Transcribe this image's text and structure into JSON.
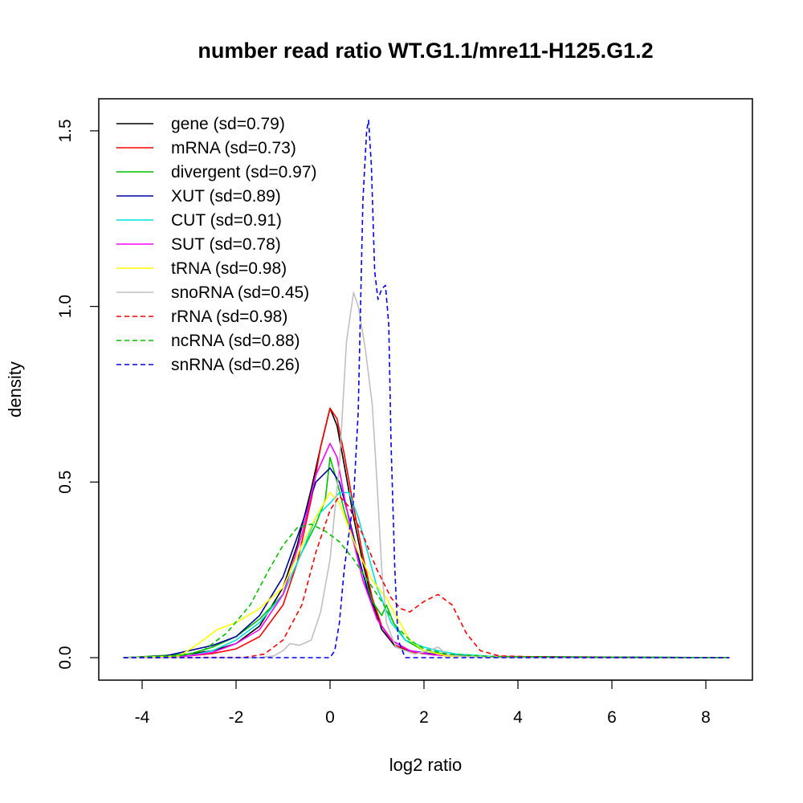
{
  "chart_data": {
    "type": "line",
    "title": "number read ratio WT.G1.1/mre11-H125.G1.2",
    "xlabel": "log2 ratio",
    "ylabel": "density",
    "xlim": [
      -4.4,
      8.5
    ],
    "ylim": [
      0,
      1.55
    ],
    "xticks": [
      -4,
      -2,
      0,
      2,
      4,
      6,
      8
    ],
    "yticks": [
      0.0,
      0.5,
      1.0,
      1.5
    ],
    "xtick_labels": [
      "-4",
      "-2",
      "0",
      "2",
      "4",
      "6",
      "8"
    ],
    "ytick_labels": [
      "0.0",
      "0.5",
      "1.0",
      "1.5"
    ],
    "legend_position": "top-left",
    "series": [
      {
        "name": "gene",
        "label": "gene (sd=0.79)",
        "color": "#000000",
        "dash": "solid",
        "points": [
          [
            -4.4,
            0
          ],
          [
            -3.5,
            0.002
          ],
          [
            -3,
            0.01
          ],
          [
            -2.5,
            0.02
          ],
          [
            -2,
            0.04
          ],
          [
            -1.5,
            0.09
          ],
          [
            -1,
            0.2
          ],
          [
            -0.7,
            0.32
          ],
          [
            -0.4,
            0.48
          ],
          [
            -0.2,
            0.6
          ],
          [
            0,
            0.71
          ],
          [
            0.15,
            0.66
          ],
          [
            0.3,
            0.55
          ],
          [
            0.5,
            0.4
          ],
          [
            0.7,
            0.27
          ],
          [
            0.9,
            0.16
          ],
          [
            1.1,
            0.08
          ],
          [
            1.4,
            0.03
          ],
          [
            1.8,
            0.015
          ],
          [
            2.2,
            0.008
          ],
          [
            3,
            0.003
          ],
          [
            4,
            0.001
          ],
          [
            6,
            0
          ],
          [
            8.5,
            0
          ]
        ]
      },
      {
        "name": "mRNA",
        "label": "mRNA (sd=0.73)",
        "color": "#ff0000",
        "dash": "solid",
        "points": [
          [
            -4.4,
            0
          ],
          [
            -3,
            0.005
          ],
          [
            -2.5,
            0.012
          ],
          [
            -2,
            0.025
          ],
          [
            -1.5,
            0.06
          ],
          [
            -1,
            0.15
          ],
          [
            -0.7,
            0.27
          ],
          [
            -0.4,
            0.45
          ],
          [
            -0.2,
            0.6
          ],
          [
            0,
            0.71
          ],
          [
            0.15,
            0.68
          ],
          [
            0.3,
            0.58
          ],
          [
            0.5,
            0.43
          ],
          [
            0.7,
            0.29
          ],
          [
            0.9,
            0.17
          ],
          [
            1.1,
            0.09
          ],
          [
            1.4,
            0.035
          ],
          [
            1.8,
            0.015
          ],
          [
            2.5,
            0.005
          ],
          [
            4,
            0.001
          ],
          [
            8.5,
            0
          ]
        ]
      },
      {
        "name": "divergent",
        "label": "divergent (sd=0.97)",
        "color": "#00c000",
        "dash": "solid",
        "points": [
          [
            -4.4,
            0
          ],
          [
            -3,
            0.01
          ],
          [
            -2.5,
            0.03
          ],
          [
            -2,
            0.06
          ],
          [
            -1.5,
            0.11
          ],
          [
            -1,
            0.18
          ],
          [
            -0.6,
            0.3
          ],
          [
            -0.3,
            0.38
          ],
          [
            -0.1,
            0.45
          ],
          [
            0,
            0.57
          ],
          [
            0.15,
            0.5
          ],
          [
            0.3,
            0.42
          ],
          [
            0.5,
            0.33
          ],
          [
            0.7,
            0.24
          ],
          [
            0.9,
            0.16
          ],
          [
            1.1,
            0.12
          ],
          [
            1.2,
            0.15
          ],
          [
            1.35,
            0.1
          ],
          [
            1.6,
            0.05
          ],
          [
            2,
            0.02
          ],
          [
            2.5,
            0.008
          ],
          [
            3.5,
            0.002
          ],
          [
            5,
            0.001
          ],
          [
            8.5,
            0
          ]
        ]
      },
      {
        "name": "XUT",
        "label": "XUT (sd=0.89)",
        "color": "#0000a0",
        "dash": "solid",
        "points": [
          [
            -4.4,
            0
          ],
          [
            -3.5,
            0.005
          ],
          [
            -3,
            0.02
          ],
          [
            -2.5,
            0.035
          ],
          [
            -2,
            0.06
          ],
          [
            -1.5,
            0.12
          ],
          [
            -1,
            0.23
          ],
          [
            -0.6,
            0.38
          ],
          [
            -0.3,
            0.5
          ],
          [
            0,
            0.54
          ],
          [
            0.2,
            0.5
          ],
          [
            0.4,
            0.4
          ],
          [
            0.6,
            0.29
          ],
          [
            0.8,
            0.19
          ],
          [
            1,
            0.11
          ],
          [
            1.3,
            0.05
          ],
          [
            1.7,
            0.02
          ],
          [
            2.2,
            0.01
          ],
          [
            3,
            0.004
          ],
          [
            5,
            0.002
          ],
          [
            8.5,
            0
          ]
        ]
      },
      {
        "name": "CUT",
        "label": "CUT (sd=0.91)",
        "color": "#00e0e0",
        "dash": "solid",
        "points": [
          [
            -4.4,
            0
          ],
          [
            -3,
            0.005
          ],
          [
            -2.5,
            0.02
          ],
          [
            -2,
            0.05
          ],
          [
            -1.5,
            0.1
          ],
          [
            -1,
            0.18
          ],
          [
            -0.6,
            0.3
          ],
          [
            -0.3,
            0.4
          ],
          [
            0,
            0.44
          ],
          [
            0.2,
            0.47
          ],
          [
            0.4,
            0.47
          ],
          [
            0.6,
            0.4
          ],
          [
            0.8,
            0.3
          ],
          [
            1,
            0.2
          ],
          [
            1.3,
            0.1
          ],
          [
            1.6,
            0.05
          ],
          [
            2,
            0.03
          ],
          [
            2.3,
            0.02
          ],
          [
            2.7,
            0.01
          ],
          [
            3.5,
            0.003
          ],
          [
            5,
            0.001
          ],
          [
            8.5,
            0
          ]
        ]
      },
      {
        "name": "SUT",
        "label": "SUT (sd=0.78)",
        "color": "#ff00ff",
        "dash": "solid",
        "points": [
          [
            -4.4,
            0
          ],
          [
            -3,
            0.005
          ],
          [
            -2.5,
            0.015
          ],
          [
            -2,
            0.04
          ],
          [
            -1.5,
            0.08
          ],
          [
            -1,
            0.18
          ],
          [
            -0.6,
            0.35
          ],
          [
            -0.3,
            0.52
          ],
          [
            0,
            0.61
          ],
          [
            0.15,
            0.57
          ],
          [
            0.3,
            0.46
          ],
          [
            0.5,
            0.33
          ],
          [
            0.7,
            0.22
          ],
          [
            1,
            0.11
          ],
          [
            1.3,
            0.05
          ],
          [
            1.7,
            0.02
          ],
          [
            2.2,
            0.008
          ],
          [
            3,
            0.003
          ],
          [
            5,
            0.001
          ],
          [
            8.5,
            0
          ]
        ]
      },
      {
        "name": "tRNA",
        "label": "tRNA (sd=0.98)",
        "color": "#ffff00",
        "dash": "solid",
        "points": [
          [
            -4.4,
            0
          ],
          [
            -3.2,
            0.005
          ],
          [
            -2.8,
            0.04
          ],
          [
            -2.4,
            0.08
          ],
          [
            -2,
            0.1
          ],
          [
            -1.5,
            0.14
          ],
          [
            -1,
            0.2
          ],
          [
            -0.6,
            0.32
          ],
          [
            -0.3,
            0.4
          ],
          [
            0,
            0.47
          ],
          [
            0.2,
            0.44
          ],
          [
            0.4,
            0.37
          ],
          [
            0.6,
            0.3
          ],
          [
            0.9,
            0.22
          ],
          [
            1.2,
            0.17
          ],
          [
            1.4,
            0.12
          ],
          [
            1.7,
            0.05
          ],
          [
            2,
            0.02
          ],
          [
            2.5,
            0.005
          ],
          [
            4,
            0.001
          ],
          [
            8.5,
            0
          ]
        ]
      },
      {
        "name": "snoRNA",
        "label": "snoRNA (sd=0.45)",
        "color": "#c0c0c0",
        "dash": "solid",
        "points": [
          [
            -4.4,
            0
          ],
          [
            -1.5,
            0
          ],
          [
            -1.2,
            0.005
          ],
          [
            -1,
            0.02
          ],
          [
            -0.85,
            0.04
          ],
          [
            -0.65,
            0.035
          ],
          [
            -0.4,
            0.05
          ],
          [
            -0.2,
            0.13
          ],
          [
            0,
            0.28
          ],
          [
            0.2,
            0.55
          ],
          [
            0.35,
            0.9
          ],
          [
            0.5,
            1.04
          ],
          [
            0.6,
            1.0
          ],
          [
            0.75,
            0.88
          ],
          [
            0.9,
            0.72
          ],
          [
            1,
            0.5
          ],
          [
            1.1,
            0.25
          ],
          [
            1.2,
            0.1
          ],
          [
            1.4,
            0.03
          ],
          [
            1.8,
            0.01
          ],
          [
            2.1,
            0.02
          ],
          [
            2.3,
            0.03
          ],
          [
            2.5,
            0.008
          ],
          [
            3,
            0.002
          ],
          [
            4,
            0
          ],
          [
            8.5,
            0
          ]
        ]
      },
      {
        "name": "rRNA",
        "label": "rRNA (sd=0.98)",
        "color": "#ff0000",
        "dash": "dashed",
        "points": [
          [
            -4.4,
            0
          ],
          [
            -1.8,
            0.001
          ],
          [
            -1.4,
            0.01
          ],
          [
            -1,
            0.05
          ],
          [
            -0.6,
            0.15
          ],
          [
            -0.3,
            0.3
          ],
          [
            0,
            0.42
          ],
          [
            0.2,
            0.46
          ],
          [
            0.4,
            0.43
          ],
          [
            0.7,
            0.35
          ],
          [
            1,
            0.25
          ],
          [
            1.3,
            0.17
          ],
          [
            1.5,
            0.14
          ],
          [
            1.7,
            0.13
          ],
          [
            2,
            0.16
          ],
          [
            2.3,
            0.18
          ],
          [
            2.6,
            0.15
          ],
          [
            2.9,
            0.07
          ],
          [
            3.2,
            0.02
          ],
          [
            3.6,
            0.005
          ],
          [
            4.5,
            0.002
          ],
          [
            6,
            0.001
          ],
          [
            8.5,
            0
          ]
        ]
      },
      {
        "name": "ncRNA",
        "label": "ncRNA (sd=0.88)",
        "color": "#00c000",
        "dash": "dashed",
        "points": [
          [
            -4.4,
            0
          ],
          [
            -3.2,
            0.005
          ],
          [
            -2.7,
            0.02
          ],
          [
            -2.2,
            0.07
          ],
          [
            -1.7,
            0.15
          ],
          [
            -1.3,
            0.25
          ],
          [
            -1,
            0.32
          ],
          [
            -0.7,
            0.37
          ],
          [
            -0.4,
            0.38
          ],
          [
            -0.1,
            0.36
          ],
          [
            0.2,
            0.33
          ],
          [
            0.5,
            0.28
          ],
          [
            0.8,
            0.22
          ],
          [
            1.1,
            0.16
          ],
          [
            1.4,
            0.09
          ],
          [
            1.7,
            0.05
          ],
          [
            2,
            0.025
          ],
          [
            2.5,
            0.01
          ],
          [
            3.5,
            0.003
          ],
          [
            5,
            0.002
          ],
          [
            7,
            0.001
          ],
          [
            8.5,
            0
          ]
        ]
      },
      {
        "name": "snRNA",
        "label": "snRNA (sd=0.26)",
        "color": "#0000ff",
        "dash": "dashed",
        "points": [
          [
            -4.4,
            0
          ],
          [
            0,
            0
          ],
          [
            0.1,
            0.02
          ],
          [
            0.2,
            0.1
          ],
          [
            0.3,
            0.25
          ],
          [
            0.4,
            0.35
          ],
          [
            0.5,
            0.45
          ],
          [
            0.6,
            0.7
          ],
          [
            0.7,
            1.3
          ],
          [
            0.78,
            1.5
          ],
          [
            0.82,
            1.53
          ],
          [
            0.88,
            1.4
          ],
          [
            0.95,
            1.1
          ],
          [
            1.02,
            1.02
          ],
          [
            1.1,
            1.05
          ],
          [
            1.18,
            1.06
          ],
          [
            1.25,
            0.95
          ],
          [
            1.3,
            0.6
          ],
          [
            1.38,
            0.25
          ],
          [
            1.45,
            0.05
          ],
          [
            1.6,
            0
          ],
          [
            8.5,
            0
          ]
        ]
      }
    ]
  }
}
